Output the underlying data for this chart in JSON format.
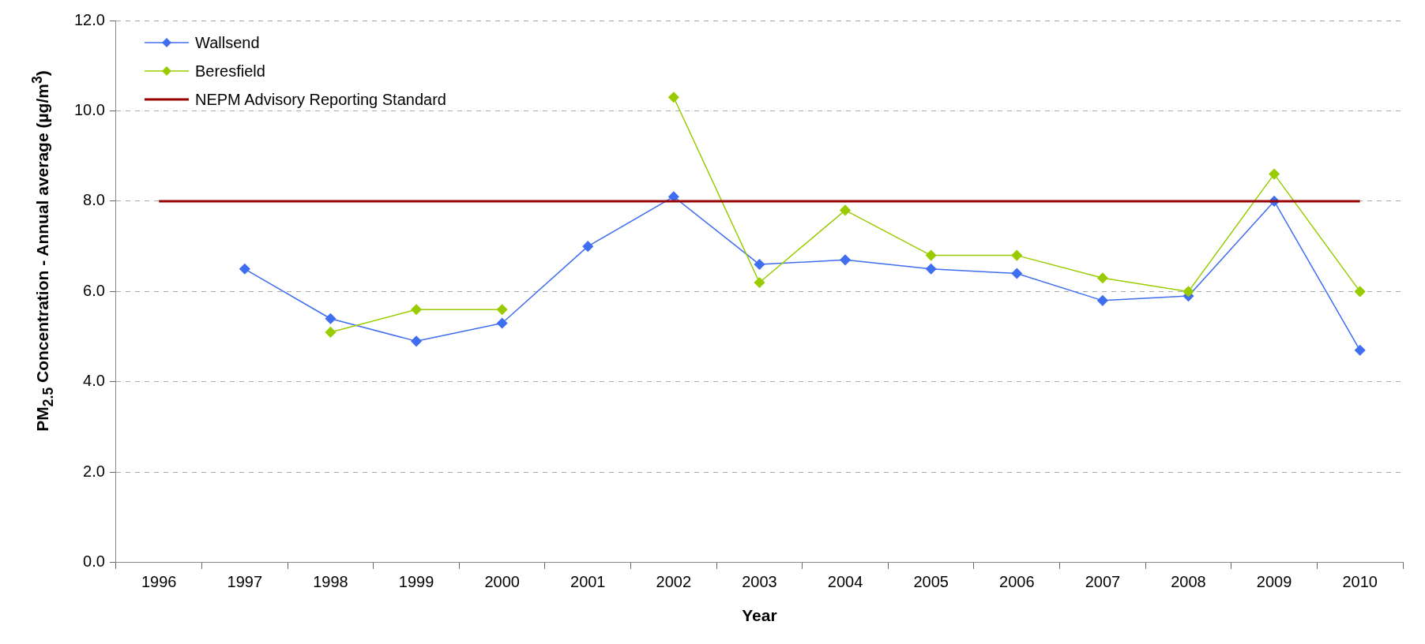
{
  "chart_data": {
    "type": "line",
    "xlabel": "Year",
    "ylabel": "PM$_{2.5}$ Concentration - Annual average (µg/m$^{3}$)",
    "categories": [
      "1996",
      "1997",
      "1998",
      "1999",
      "2000",
      "2001",
      "2002",
      "2003",
      "2004",
      "2005",
      "2006",
      "2007",
      "2008",
      "2009",
      "2010"
    ],
    "series": [
      {
        "name": "Wallsend",
        "color": "#3f6ef0",
        "values": [
          null,
          6.5,
          5.4,
          4.9,
          5.3,
          7.0,
          8.1,
          6.6,
          6.7,
          6.5,
          6.4,
          5.8,
          5.9,
          8.0,
          4.7
        ]
      },
      {
        "name": "Beresfield",
        "color": "#99cc00",
        "values": [
          null,
          null,
          5.1,
          5.6,
          5.6,
          null,
          10.3,
          6.2,
          7.8,
          6.8,
          6.8,
          6.3,
          6.0,
          8.6,
          6.0
        ]
      },
      {
        "name": "NEPM Advisory Reporting Standard",
        "color": "#990000",
        "marker": "none",
        "values": [
          8,
          8,
          8,
          8,
          8,
          8,
          8,
          8,
          8,
          8,
          8,
          8,
          8,
          8,
          8
        ]
      }
    ],
    "ylim": [
      0,
      12
    ],
    "yticks": [
      {
        "value": 0,
        "label": "0.0"
      },
      {
        "value": 2,
        "label": "2.0"
      },
      {
        "value": 4,
        "label": "4.0"
      },
      {
        "value": 6,
        "label": "6.0"
      },
      {
        "value": 8,
        "label": "8.0"
      },
      {
        "value": 10,
        "label": "10.0"
      },
      {
        "value": 12,
        "label": "12.0"
      }
    ],
    "grid": "y",
    "legend": "top left",
    "marker": "diamond",
    "line_style": "solid"
  }
}
